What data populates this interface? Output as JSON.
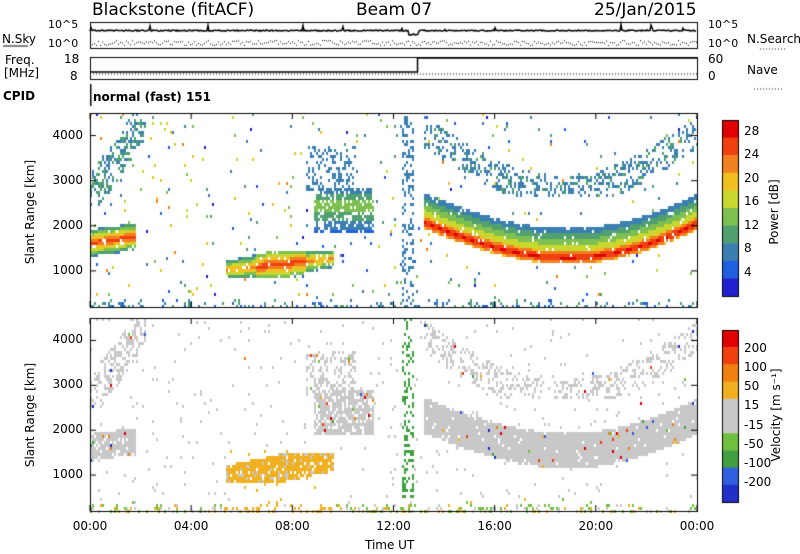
{
  "header": {
    "station": "Blackstone (fitACF)",
    "beam": "Beam 07",
    "date": "25/Jan/2015"
  },
  "top_panels": {
    "nsky_label": "N.Sky",
    "nsearch_label": "N.Search",
    "noise_ticks_left": [
      "10^5",
      "10^0"
    ],
    "noise_ticks_right": [
      "10^5",
      "10^0"
    ],
    "freq_label": "Freq.",
    "freq_unit": "[MHz]",
    "freq_ticks": [
      "18",
      "8"
    ],
    "nave_label": "Nave",
    "nave_ticks": [
      "60",
      "0"
    ],
    "cpid_label": "CPID",
    "cpid_value": "normal (fast) 151"
  },
  "colors": {
    "power_scale": [
      "#2020d0",
      "#2060e0",
      "#3b7fb0",
      "#50a070",
      "#7dbf50",
      "#c8d830",
      "#f0c020",
      "#f08020",
      "#f04010",
      "#e00000"
    ],
    "velocity_scale": [
      "#2030c8",
      "#3060e0",
      "#40a040",
      "#70c040",
      "#c8c8c8",
      "#c8c8c8",
      "#f0b020",
      "#f08010",
      "#f04010",
      "#e00000"
    ]
  },
  "chart_data": [
    {
      "type": "heatmap",
      "name": "power",
      "xlabel": "Time UT",
      "ylabel": "Slant Range [km]",
      "x_ticks": [
        "00:00",
        "04:00",
        "08:00",
        "12:00",
        "16:00",
        "20:00",
        "00:00"
      ],
      "xlim": [
        0,
        24
      ],
      "y_ticks": [
        1000,
        2000,
        3000,
        4000
      ],
      "ylim": [
        200,
        4500
      ],
      "colorbar_label": "Power [dB]",
      "colorbar_ticks": [
        4,
        8,
        12,
        16,
        20,
        24,
        28
      ],
      "colorbar_range": [
        0,
        30
      ]
    },
    {
      "type": "heatmap",
      "name": "velocity",
      "xlabel": "Time UT",
      "ylabel": "Slant Range [km]",
      "x_ticks": [
        "00:00",
        "04:00",
        "08:00",
        "12:00",
        "16:00",
        "20:00",
        "00:00"
      ],
      "xlim": [
        0,
        24
      ],
      "y_ticks": [
        1000,
        2000,
        3000,
        4000
      ],
      "ylim": [
        200,
        4500
      ],
      "colorbar_label": "Velocity [m s⁻¹]",
      "colorbar_ticks": [
        200,
        100,
        50,
        15,
        -15,
        -50,
        -100,
        -200
      ],
      "colorbar_range": [
        -250,
        250
      ]
    }
  ]
}
